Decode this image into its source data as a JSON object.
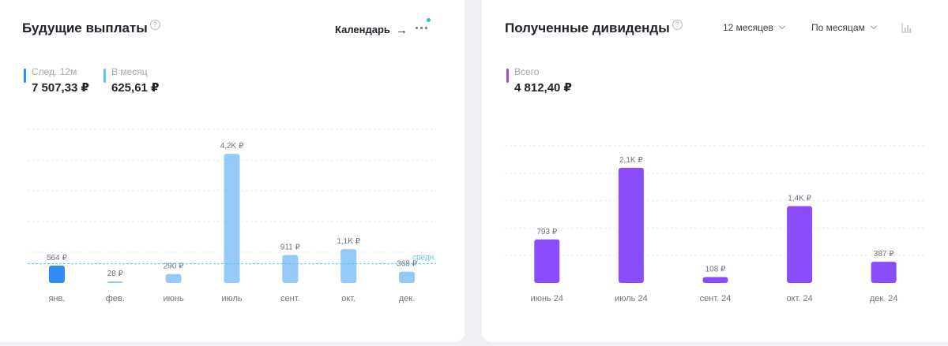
{
  "left_card": {
    "title": "Будущие выплаты",
    "help_icon": "question-circle-icon",
    "calendar_label": "Календарь",
    "calendar_arrow": "→",
    "stats": [
      {
        "label": "След. 12м",
        "value": "7 507,33 ₽",
        "color": "#2f8cf5"
      },
      {
        "label": "В месяц",
        "value": "625,61 ₽",
        "color": "#62c6e3"
      }
    ],
    "avg_label": "средн."
  },
  "right_card": {
    "title": "Полученные дивиденды",
    "help_icon": "question-circle-icon",
    "period_dropdown": "12 месяцев",
    "grouping_dropdown": "По месяцам",
    "chart_icon": "bar-chart-icon",
    "stats": [
      {
        "label": "Всего",
        "value": "4 812,40 ₽",
        "color": "#8b4dfb"
      }
    ]
  },
  "chart_data": [
    {
      "type": "bar",
      "categories": [
        "янв.",
        "фев.",
        "июнь",
        "июль",
        "сент.",
        "окт.",
        "дек."
      ],
      "values": [
        564,
        28,
        290,
        4200,
        911,
        1100,
        368
      ],
      "data_labels": [
        "564 ₽",
        "28 ₽",
        "290 ₽",
        "4,2K ₽",
        "911 ₽",
        "1,1K ₽",
        "368 ₽"
      ],
      "highlight_index": 0,
      "colors": {
        "highlight": "#2f8cf5",
        "bar": "#94c9fa",
        "avg_line": "#5bc8d6"
      },
      "average": 625.61,
      "ylim": [
        0,
        5000
      ],
      "grid": true
    },
    {
      "type": "bar",
      "categories": [
        "июнь 24",
        "июль 24",
        "сент. 24",
        "окт. 24",
        "дек. 24"
      ],
      "values": [
        793,
        2100,
        108,
        1400,
        387
      ],
      "data_labels": [
        "793 ₽",
        "2,1K ₽",
        "108 ₽",
        "1,4K ₽",
        "387 ₽"
      ],
      "colors": {
        "bar": "#8b4dfb"
      },
      "ylim": [
        0,
        2500
      ],
      "grid": true
    }
  ]
}
